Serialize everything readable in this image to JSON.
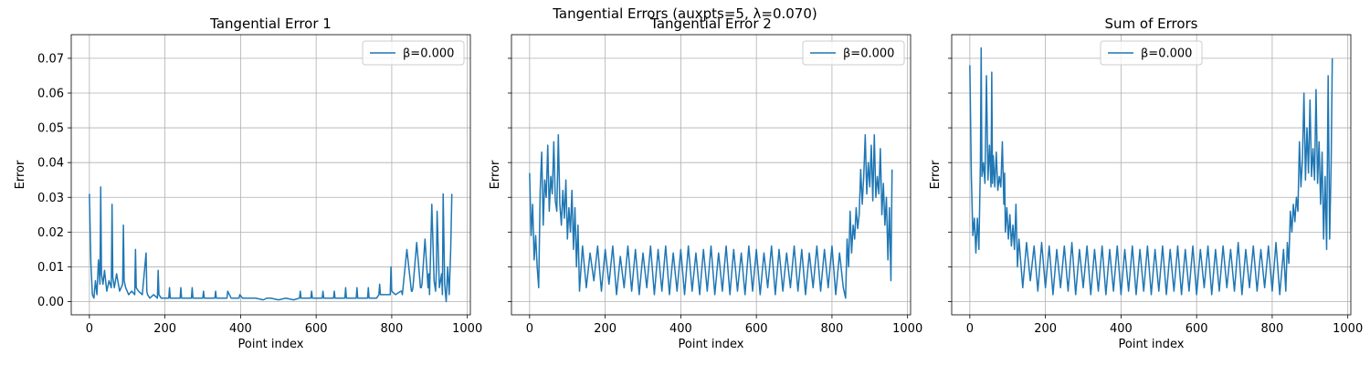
{
  "figure_title": "Tangential Errors (auxpts=5, λ=0.070)",
  "chart_data": [
    {
      "type": "line",
      "title": "Tangential Error 1",
      "xlabel": "Point index",
      "ylabel": "Error",
      "xlim": [
        -48,
        1008
      ],
      "ylim": [
        -0.0038,
        0.0768
      ],
      "xticks": [
        0,
        200,
        400,
        600,
        800,
        1000
      ],
      "yticks": [
        0.0,
        0.01,
        0.02,
        0.03,
        0.04,
        0.05,
        0.06,
        0.07
      ],
      "ytick_labels": [
        "0.00",
        "0.01",
        "0.02",
        "0.03",
        "0.04",
        "0.05",
        "0.06",
        "0.07"
      ],
      "grid": true,
      "legend_position": "top-right",
      "series": [
        {
          "name": "β=0.000",
          "color": "#1f77b4",
          "x": [
            0,
            4,
            8,
            12,
            16,
            20,
            24,
            28,
            30,
            32,
            36,
            40,
            46,
            52,
            58,
            60,
            62,
            66,
            72,
            80,
            88,
            90,
            92,
            96,
            104,
            112,
            120,
            122,
            124,
            130,
            140,
            150,
            152,
            154,
            160,
            170,
            180,
            182,
            184,
            190,
            200,
            210,
            212,
            214,
            220,
            230,
            240,
            242,
            244,
            250,
            260,
            270,
            272,
            274,
            280,
            290,
            300,
            302,
            304,
            310,
            320,
            332,
            334,
            336,
            345,
            360,
            364,
            366,
            375,
            390,
            396,
            398,
            405,
            420,
            440,
            460,
            470,
            480,
            500,
            520,
            540,
            556,
            558,
            560,
            580,
            586,
            588,
            590,
            610,
            616,
            618,
            620,
            640,
            646,
            648,
            650,
            670,
            676,
            678,
            680,
            700,
            706,
            708,
            710,
            730,
            736,
            738,
            740,
            760,
            766,
            768,
            770,
            790,
            796,
            798,
            800,
            810,
            824,
            826,
            828,
            840,
            852,
            854,
            856,
            866,
            876,
            878,
            880,
            888,
            896,
            898,
            900,
            906,
            912,
            916,
            918,
            920,
            926,
            932,
            934,
            936,
            940,
            944,
            948,
            952,
            956,
            959
          ],
          "values": [
            0.031,
            0.011,
            0.002,
            0.001,
            0.006,
            0.002,
            0.012,
            0.005,
            0.033,
            0.008,
            0.005,
            0.009,
            0.003,
            0.006,
            0.004,
            0.028,
            0.007,
            0.004,
            0.008,
            0.003,
            0.005,
            0.022,
            0.006,
            0.004,
            0.002,
            0.003,
            0.002,
            0.015,
            0.004,
            0.003,
            0.002,
            0.014,
            0.003,
            0.002,
            0.001,
            0.002,
            0.001,
            0.009,
            0.002,
            0.001,
            0.001,
            0.001,
            0.004,
            0.001,
            0.001,
            0.001,
            0.001,
            0.004,
            0.001,
            0.001,
            0.001,
            0.001,
            0.004,
            0.001,
            0.001,
            0.001,
            0.001,
            0.003,
            0.001,
            0.001,
            0.001,
            0.001,
            0.003,
            0.001,
            0.001,
            0.001,
            0.001,
            0.003,
            0.001,
            0.001,
            0.001,
            0.002,
            0.001,
            0.001,
            0.001,
            0.0005,
            0.001,
            0.001,
            0.0005,
            0.001,
            0.0005,
            0.001,
            0.003,
            0.001,
            0.001,
            0.001,
            0.003,
            0.001,
            0.001,
            0.001,
            0.003,
            0.001,
            0.001,
            0.001,
            0.003,
            0.001,
            0.001,
            0.001,
            0.004,
            0.001,
            0.001,
            0.001,
            0.004,
            0.001,
            0.001,
            0.001,
            0.004,
            0.001,
            0.001,
            0.002,
            0.005,
            0.002,
            0.002,
            0.002,
            0.01,
            0.003,
            0.002,
            0.003,
            0.003,
            0.002,
            0.015,
            0.003,
            0.003,
            0.004,
            0.017,
            0.004,
            0.004,
            0.005,
            0.018,
            0.004,
            0.008,
            0.002,
            0.028,
            0.006,
            0.003,
            0.009,
            0.026,
            0.004,
            0.008,
            0.002,
            0.031,
            0.005,
            0.0,
            0.01,
            0.002,
            0.015,
            0.031
          ]
        }
      ]
    },
    {
      "type": "line",
      "title": "Tangential Error 2",
      "xlabel": "Point index",
      "ylabel": "Error",
      "xlim": [
        -48,
        1008
      ],
      "ylim": [
        -0.0038,
        0.0768
      ],
      "xticks": [
        0,
        200,
        400,
        600,
        800,
        1000
      ],
      "yticks": [
        0.0,
        0.01,
        0.02,
        0.03,
        0.04,
        0.05,
        0.06,
        0.07
      ],
      "grid": true,
      "legend_position": "top-right",
      "series": [
        {
          "name": "β=0.000",
          "color": "#1f77b4",
          "x": [
            0,
            4,
            8,
            12,
            16,
            20,
            24,
            28,
            32,
            36,
            40,
            44,
            48,
            52,
            56,
            60,
            64,
            68,
            72,
            76,
            80,
            84,
            88,
            92,
            96,
            100,
            104,
            108,
            112,
            116,
            120,
            124,
            128,
            132,
            140,
            150,
            160,
            170,
            180,
            190,
            200,
            210,
            220,
            230,
            240,
            250,
            260,
            270,
            280,
            290,
            300,
            310,
            320,
            330,
            340,
            350,
            360,
            370,
            380,
            390,
            400,
            410,
            420,
            430,
            440,
            450,
            460,
            470,
            480,
            490,
            500,
            510,
            520,
            530,
            540,
            550,
            560,
            570,
            580,
            590,
            600,
            610,
            620,
            630,
            640,
            650,
            660,
            670,
            680,
            690,
            700,
            710,
            720,
            730,
            740,
            750,
            760,
            770,
            780,
            790,
            800,
            810,
            820,
            830,
            836,
            840,
            844,
            848,
            852,
            856,
            860,
            864,
            868,
            872,
            876,
            880,
            884,
            888,
            892,
            896,
            900,
            904,
            908,
            912,
            916,
            920,
            924,
            928,
            932,
            936,
            940,
            944,
            948,
            952,
            956,
            959
          ],
          "values": [
            0.037,
            0.019,
            0.028,
            0.012,
            0.019,
            0.01,
            0.004,
            0.032,
            0.043,
            0.022,
            0.035,
            0.03,
            0.045,
            0.026,
            0.036,
            0.031,
            0.046,
            0.029,
            0.026,
            0.048,
            0.028,
            0.022,
            0.032,
            0.024,
            0.035,
            0.018,
            0.027,
            0.02,
            0.032,
            0.015,
            0.027,
            0.01,
            0.022,
            0.003,
            0.016,
            0.004,
            0.014,
            0.006,
            0.016,
            0.003,
            0.015,
            0.005,
            0.016,
            0.002,
            0.013,
            0.004,
            0.016,
            0.003,
            0.015,
            0.002,
            0.014,
            0.004,
            0.016,
            0.002,
            0.015,
            0.003,
            0.016,
            0.002,
            0.014,
            0.003,
            0.015,
            0.002,
            0.016,
            0.003,
            0.014,
            0.002,
            0.015,
            0.003,
            0.016,
            0.002,
            0.014,
            0.003,
            0.016,
            0.002,
            0.015,
            0.003,
            0.014,
            0.002,
            0.016,
            0.003,
            0.015,
            0.002,
            0.014,
            0.004,
            0.016,
            0.002,
            0.015,
            0.003,
            0.014,
            0.004,
            0.016,
            0.003,
            0.015,
            0.002,
            0.014,
            0.004,
            0.016,
            0.003,
            0.015,
            0.004,
            0.016,
            0.002,
            0.014,
            0.004,
            0.001,
            0.018,
            0.01,
            0.026,
            0.014,
            0.022,
            0.018,
            0.027,
            0.021,
            0.025,
            0.038,
            0.028,
            0.036,
            0.048,
            0.031,
            0.04,
            0.033,
            0.045,
            0.029,
            0.048,
            0.03,
            0.036,
            0.031,
            0.044,
            0.025,
            0.034,
            0.022,
            0.03,
            0.012,
            0.027,
            0.006,
            0.038
          ]
        }
      ]
    },
    {
      "type": "line",
      "title": "Sum of Errors",
      "xlabel": "Point index",
      "ylabel": "Error",
      "xlim": [
        -48,
        1008
      ],
      "ylim": [
        -0.0038,
        0.0768
      ],
      "xticks": [
        0,
        200,
        400,
        600,
        800,
        1000
      ],
      "yticks": [
        0.0,
        0.01,
        0.02,
        0.03,
        0.04,
        0.05,
        0.06,
        0.07
      ],
      "grid": true,
      "legend_position": "top-center",
      "series": [
        {
          "name": "β=0.000",
          "color": "#1f77b4",
          "x": [
            0,
            4,
            8,
            12,
            16,
            20,
            24,
            28,
            30,
            32,
            36,
            40,
            44,
            48,
            52,
            56,
            58,
            60,
            62,
            66,
            70,
            74,
            78,
            82,
            86,
            90,
            92,
            94,
            98,
            102,
            106,
            110,
            114,
            118,
            122,
            126,
            130,
            140,
            150,
            160,
            170,
            180,
            190,
            200,
            210,
            220,
            230,
            240,
            250,
            260,
            270,
            280,
            290,
            300,
            310,
            320,
            330,
            340,
            350,
            360,
            370,
            380,
            390,
            400,
            410,
            420,
            430,
            440,
            450,
            460,
            470,
            480,
            490,
            500,
            510,
            520,
            530,
            540,
            550,
            560,
            570,
            580,
            590,
            600,
            610,
            620,
            630,
            640,
            650,
            660,
            670,
            680,
            690,
            700,
            710,
            720,
            730,
            740,
            750,
            760,
            770,
            780,
            790,
            800,
            810,
            820,
            830,
            836,
            840,
            844,
            848,
            852,
            856,
            860,
            864,
            868,
            872,
            876,
            880,
            884,
            888,
            892,
            896,
            900,
            904,
            908,
            912,
            916,
            920,
            924,
            928,
            932,
            936,
            940,
            944,
            948,
            952,
            956,
            959
          ],
          "values": [
            0.068,
            0.036,
            0.019,
            0.024,
            0.014,
            0.024,
            0.015,
            0.04,
            0.073,
            0.036,
            0.04,
            0.034,
            0.065,
            0.035,
            0.045,
            0.033,
            0.066,
            0.034,
            0.042,
            0.033,
            0.043,
            0.032,
            0.036,
            0.033,
            0.046,
            0.028,
            0.037,
            0.02,
            0.027,
            0.018,
            0.025,
            0.016,
            0.022,
            0.015,
            0.028,
            0.01,
            0.018,
            0.004,
            0.017,
            0.006,
            0.016,
            0.003,
            0.017,
            0.004,
            0.016,
            0.002,
            0.015,
            0.004,
            0.016,
            0.003,
            0.017,
            0.002,
            0.015,
            0.004,
            0.016,
            0.002,
            0.015,
            0.003,
            0.016,
            0.002,
            0.015,
            0.003,
            0.016,
            0.002,
            0.015,
            0.003,
            0.016,
            0.002,
            0.015,
            0.003,
            0.016,
            0.002,
            0.015,
            0.003,
            0.016,
            0.002,
            0.015,
            0.003,
            0.016,
            0.002,
            0.015,
            0.003,
            0.016,
            0.002,
            0.015,
            0.004,
            0.016,
            0.002,
            0.015,
            0.003,
            0.016,
            0.004,
            0.015,
            0.003,
            0.017,
            0.002,
            0.015,
            0.004,
            0.016,
            0.003,
            0.015,
            0.004,
            0.016,
            0.003,
            0.017,
            0.002,
            0.015,
            0.003,
            0.017,
            0.011,
            0.026,
            0.02,
            0.028,
            0.023,
            0.03,
            0.026,
            0.046,
            0.033,
            0.041,
            0.06,
            0.035,
            0.05,
            0.037,
            0.058,
            0.036,
            0.044,
            0.035,
            0.061,
            0.034,
            0.046,
            0.028,
            0.043,
            0.018,
            0.036,
            0.015,
            0.065,
            0.018,
            0.04,
            0.07
          ]
        }
      ]
    }
  ]
}
